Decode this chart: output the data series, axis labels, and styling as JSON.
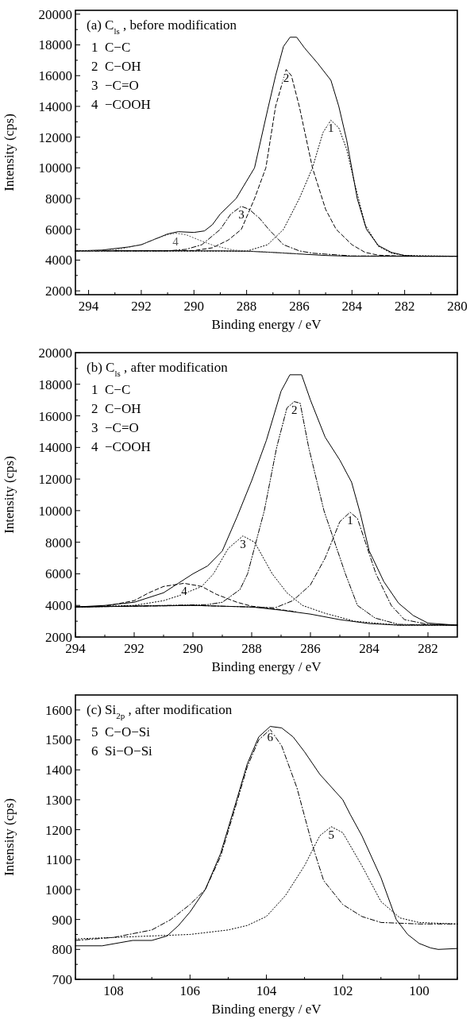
{
  "chart_data": [
    {
      "type": "line",
      "title": "(a)  C$_{ls}$ , before modification",
      "xlabel": "Binding energy / eV",
      "ylabel": "Intensity (cps)",
      "annotations": [
        "1  C−C",
        "2  C−OH",
        "3  −C=O",
        "4  −COOH"
      ],
      "xlim": [
        294.5,
        280
      ],
      "ylim": [
        1750,
        20250
      ],
      "xticks": [
        294,
        {
          "value": 293,
          "label": null
        },
        292,
        {
          "value": 291,
          "label": null
        },
        290,
        {
          "value": 289,
          "label": null
        },
        288,
        {
          "value": 287,
          "label": null
        },
        286,
        {
          "value": 285,
          "label": null
        },
        284,
        {
          "value": 283,
          "label": null
        },
        282,
        {
          "value": 281,
          "label": null
        },
        280
      ],
      "yticks": [
        2000,
        {
          "value": 3000,
          "label": null
        },
        4000,
        {
          "value": 5000,
          "label": null
        },
        6000,
        {
          "value": 7000,
          "label": null
        },
        8000,
        {
          "value": 9000,
          "label": null
        },
        10000,
        {
          "value": 11000,
          "label": null
        },
        12000,
        {
          "value": 13000,
          "label": null
        },
        14000,
        {
          "value": 15000,
          "label": null
        },
        16000,
        {
          "value": 17000,
          "label": null
        },
        18000,
        {
          "value": 19000,
          "label": null
        },
        20000
      ],
      "series": [
        {
          "color": "#000000",
          "line_style": "solid",
          "x": [
            294.5,
            293.5,
            292.5,
            292,
            291.5,
            291,
            290.6,
            290,
            289.6,
            289.3,
            289,
            288.4,
            287.7,
            287.2,
            286.9,
            286.6,
            286.35,
            286.1,
            285.8,
            285.3,
            284.8,
            284.5,
            284.2,
            283.8,
            283.45,
            283,
            282.5,
            282,
            281.5,
            280
          ],
          "values": [
            4600,
            4650,
            4850,
            5000,
            5350,
            5700,
            5850,
            5800,
            5900,
            6300,
            7000,
            8000,
            10000,
            13800,
            16000,
            17900,
            18500,
            18500,
            17800,
            16800,
            15700,
            14000,
            11800,
            8000,
            6000,
            4950,
            4500,
            4300,
            4250,
            4250
          ]
        },
        {
          "color": "#000000",
          "line_style": "solid",
          "x": [
            294.5,
            289,
            288,
            287,
            286,
            285,
            284,
            280
          ],
          "values": [
            4600,
            4600,
            4580,
            4500,
            4400,
            4300,
            4250,
            4250
          ]
        },
        {
          "name": "1",
          "color": "#000000",
          "line_style": "dotted",
          "x": [
            294.5,
            288,
            287.2,
            286.6,
            286,
            285.5,
            285.1,
            284.8,
            284.5,
            284.2,
            283.9,
            283.5,
            283,
            282.5,
            282,
            280
          ],
          "values": [
            4600,
            4580,
            5000,
            6000,
            8000,
            10000,
            12300,
            13100,
            12600,
            11200,
            9000,
            6300,
            4900,
            4450,
            4300,
            4250
          ]
        },
        {
          "name": "2",
          "color": "#000000",
          "line_style": "dashed",
          "x": [
            294.5,
            290,
            289.3,
            288.7,
            288.2,
            287.7,
            287.27,
            286.9,
            286.5,
            286.3,
            286,
            285.5,
            285,
            284.6,
            284,
            283.5,
            283,
            282,
            280
          ],
          "values": [
            4600,
            4620,
            4800,
            5300,
            6000,
            8000,
            10000,
            14000,
            16400,
            16000,
            14000,
            10000,
            7300,
            6000,
            5000,
            4500,
            4320,
            4250,
            4250
          ]
        },
        {
          "name": "3",
          "color": "#000000",
          "line_style": "dashdot",
          "x": [
            294.5,
            291,
            290.3,
            289.7,
            289,
            288.6,
            288.2,
            287.9,
            287.5,
            287.16,
            286.6,
            286,
            285.5,
            284,
            280
          ],
          "values": [
            4600,
            4600,
            4700,
            5000,
            6000,
            7000,
            7500,
            7300,
            6700,
            6000,
            5000,
            4600,
            4450,
            4270,
            4250
          ]
        },
        {
          "name": "4",
          "color": "#555555",
          "line_style": "dotted",
          "x": [
            294.5,
            293,
            292,
            291.5,
            291,
            290.7,
            290.3,
            289.8,
            289.25,
            288.5,
            287.5,
            286
          ],
          "values": [
            4600,
            4650,
            5000,
            5350,
            5650,
            5750,
            5650,
            5300,
            4950,
            4650,
            4550,
            4400
          ]
        }
      ]
    },
    {
      "type": "line",
      "title": "(b)  C$_{ls}$ , after modification",
      "xlabel": "Binding energy / eV",
      "ylabel": "Intensity (cps)",
      "annotations": [
        "1  C−C",
        "2  C−OH",
        "3  −C=O",
        "4  −COOH"
      ],
      "xlim": [
        294,
        281
      ],
      "ylim": [
        2000,
        20000
      ],
      "xticks": [
        294,
        {
          "value": 293,
          "label": null
        },
        292,
        {
          "value": 291,
          "label": null
        },
        290,
        {
          "value": 289,
          "label": null
        },
        288,
        {
          "value": 287,
          "label": null
        },
        286,
        {
          "value": 285,
          "label": null
        },
        284,
        {
          "value": 283,
          "label": null
        },
        282
      ],
      "yticks": [
        2000,
        {
          "value": 3000,
          "label": null
        },
        4000,
        {
          "value": 5000,
          "label": null
        },
        6000,
        {
          "value": 7000,
          "label": null
        },
        8000,
        {
          "value": 9000,
          "label": null
        },
        10000,
        {
          "value": 11000,
          "label": null
        },
        12000,
        {
          "value": 13000,
          "label": null
        },
        14000,
        {
          "value": 15000,
          "label": null
        },
        16000,
        {
          "value": 17000,
          "label": null
        },
        18000,
        {
          "value": 19000,
          "label": null
        },
        20000
      ],
      "series": [
        {
          "color": "#000000",
          "line_style": "solid",
          "x": [
            294,
            293,
            292,
            291,
            290.5,
            290,
            289.5,
            289,
            288.5,
            288,
            287.5,
            287,
            286.7,
            286.3,
            286,
            285.5,
            285,
            284.6,
            284.3,
            284,
            283.5,
            283,
            282.5,
            282,
            281
          ],
          "values": [
            3900,
            4000,
            4200,
            4800,
            5400,
            6000,
            6500,
            7450,
            9600,
            11900,
            14450,
            17560,
            18600,
            18600,
            17000,
            14650,
            13200,
            11800,
            9800,
            7450,
            5500,
            4140,
            3360,
            2880,
            2750
          ]
        },
        {
          "color": "#000000",
          "line_style": "solid",
          "x": [
            294,
            290,
            288,
            287,
            286,
            285,
            284,
            283,
            281
          ],
          "values": [
            3900,
            4000,
            3900,
            3700,
            3450,
            3100,
            2850,
            2750,
            2750
          ]
        },
        {
          "name": "1",
          "color": "#000000",
          "line_style": "dashdot",
          "x": [
            294,
            290,
            288,
            287.2,
            286.6,
            286,
            285.5,
            285.28,
            285,
            284.65,
            284.4,
            284.13,
            283.77,
            283.25,
            282.8,
            282,
            281
          ],
          "values": [
            3900,
            4000,
            3900,
            3850,
            4300,
            5300,
            7000,
            8000,
            9300,
            9900,
            9500,
            8000,
            6000,
            4000,
            3100,
            2800,
            2750
          ]
        },
        {
          "name": "2",
          "color": "#000000",
          "line_style": "dashdotdot",
          "x": [
            294,
            291,
            289.5,
            289,
            288.4,
            288.14,
            287.57,
            287.15,
            286.8,
            286.55,
            286.35,
            286.06,
            285.54,
            284.81,
            284.4,
            283.8,
            283,
            281
          ],
          "values": [
            3900,
            4000,
            4050,
            4200,
            5000,
            6000,
            10000,
            14000,
            16500,
            16900,
            16800,
            14000,
            10000,
            6000,
            4000,
            3200,
            2800,
            2750
          ]
        },
        {
          "name": "3",
          "color": "#000000",
          "line_style": "dotted",
          "x": [
            294,
            292,
            291,
            290.5,
            289.7,
            289.3,
            288.8,
            288.3,
            287.9,
            287.3,
            286.8,
            286.27,
            285.5,
            284.5,
            283,
            281
          ],
          "values": [
            3900,
            4000,
            4300,
            4600,
            5200,
            6000,
            7600,
            8400,
            8000,
            6000,
            4800,
            4000,
            3500,
            3000,
            2750,
            2750
          ]
        },
        {
          "name": "4",
          "color": "#000000",
          "line_style": "dashed",
          "x": [
            294,
            293,
            292,
            291.5,
            291,
            290.3,
            289.7,
            289.2,
            288.5,
            288,
            287.5,
            286.5
          ],
          "values": [
            3900,
            3950,
            4300,
            4800,
            5200,
            5400,
            5200,
            4700,
            4200,
            3950,
            3850,
            3600
          ]
        }
      ]
    },
    {
      "type": "line",
      "title": "(c)  Si$_{2p}$ , after modification",
      "xlabel": "Binding energy / eV",
      "ylabel": "Intensity (cps)",
      "annotations": [
        "5  C−O−Si",
        "6  Si−O−Si"
      ],
      "xlim": [
        109,
        99
      ],
      "ylim": [
        700,
        1650
      ],
      "xticks": [
        {
          "value": 109,
          "label": null
        },
        108,
        {
          "value": 107,
          "label": null
        },
        106,
        {
          "value": 105,
          "label": null
        },
        104,
        {
          "value": 103,
          "label": null
        },
        102,
        {
          "value": 101,
          "label": null
        },
        100,
        {
          "value": 99,
          "label": null
        }
      ],
      "yticks": [
        700,
        {
          "value": 750,
          "label": null
        },
        800,
        {
          "value": 850,
          "label": null
        },
        900,
        {
          "value": 950,
          "label": null
        },
        1000,
        {
          "value": 1050,
          "label": null
        },
        1100,
        {
          "value": 1150,
          "label": null
        },
        1200,
        {
          "value": 1250,
          "label": null
        },
        1300,
        {
          "value": 1350,
          "label": null
        },
        1400,
        {
          "value": 1450,
          "label": null
        },
        1500,
        {
          "value": 1550,
          "label": null
        },
        1600
      ],
      "series": [
        {
          "color": "#000000",
          "line_style": "solid",
          "x": [
            109,
            108.3,
            107.5,
            107,
            106.6,
            106.3,
            106,
            105.6,
            105.2,
            104.8,
            104.5,
            104.2,
            103.9,
            103.6,
            103.3,
            103,
            102.6,
            102,
            101.8,
            101.5,
            101,
            100.6,
            100.3,
            100,
            99.7,
            99.5,
            99
          ],
          "values": [
            812,
            812,
            830,
            830,
            845,
            880,
            925,
            1000,
            1120,
            1290,
            1420,
            1510,
            1545,
            1540,
            1510,
            1460,
            1385,
            1300,
            1250,
            1180,
            1040,
            900,
            850,
            820,
            805,
            800,
            803
          ]
        },
        {
          "name": "5",
          "color": "#000000",
          "line_style": "dotted",
          "x": [
            109,
            107,
            106,
            105,
            104.5,
            104,
            103.5,
            103,
            102.6,
            102.3,
            102,
            101.5,
            101,
            100.5,
            100,
            99
          ],
          "values": [
            835,
            845,
            850,
            865,
            880,
            910,
            980,
            1080,
            1180,
            1210,
            1190,
            1080,
            960,
            905,
            890,
            885
          ]
        },
        {
          "name": "6",
          "color": "#000000",
          "line_style": "dashdot",
          "x": [
            109,
            108,
            107,
            106.5,
            106,
            105.6,
            105.2,
            104.8,
            104.5,
            104.2,
            103.9,
            103.6,
            103.2,
            102.8,
            102.5,
            102,
            101.5,
            101,
            100,
            99
          ],
          "values": [
            830,
            840,
            865,
            900,
            950,
            1000,
            1110,
            1280,
            1410,
            1500,
            1535,
            1480,
            1340,
            1150,
            1030,
            950,
            910,
            890,
            885,
            885
          ]
        }
      ]
    }
  ]
}
